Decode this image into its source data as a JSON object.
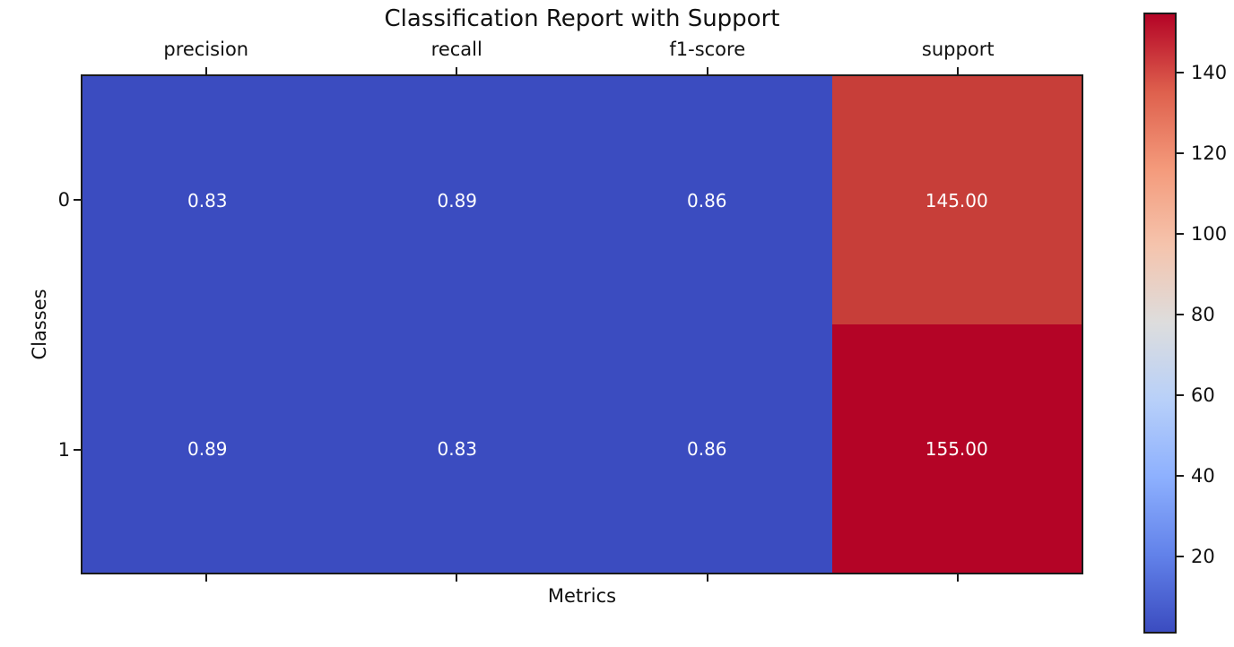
{
  "chart_data": {
    "type": "heatmap",
    "title": "Classification Report with Support",
    "xlabel": "Metrics",
    "ylabel": "Classes",
    "columns": [
      "precision",
      "recall",
      "f1-score",
      "support"
    ],
    "rows": [
      "0",
      "1"
    ],
    "values": [
      [
        0.83,
        0.89,
        0.86,
        145.0
      ],
      [
        0.89,
        0.83,
        0.86,
        155.0
      ]
    ],
    "cell_labels": [
      [
        "0.83",
        "0.89",
        "0.86",
        "145.00"
      ],
      [
        "0.89",
        "0.83",
        "0.86",
        "155.00"
      ]
    ],
    "cell_colors": [
      [
        "#3b4cc0",
        "#3b4cc0",
        "#3b4cc0",
        "#c73e39"
      ],
      [
        "#3b4cc0",
        "#3b4cc0",
        "#3b4cc0",
        "#b40426"
      ]
    ],
    "cell_text_color": "#ffffff",
    "colormap": "coolwarm",
    "vmin": 0.83,
    "vmax": 155,
    "colorbar_ticks": [
      20,
      40,
      60,
      80,
      100,
      120,
      140
    ],
    "colorbar_gradient": [
      {
        "pos": 0,
        "color": "#3b4cc0"
      },
      {
        "pos": 12.5,
        "color": "#6282ea"
      },
      {
        "pos": 25,
        "color": "#8db0fe"
      },
      {
        "pos": 37.5,
        "color": "#b8d0f9"
      },
      {
        "pos": 50,
        "color": "#dddddd"
      },
      {
        "pos": 62.5,
        "color": "#f5c4ad"
      },
      {
        "pos": 75,
        "color": "#f49a7b"
      },
      {
        "pos": 87.5,
        "color": "#de604d"
      },
      {
        "pos": 100,
        "color": "#b40426"
      }
    ],
    "grid": false,
    "tick_color": "#1a1a1a"
  }
}
